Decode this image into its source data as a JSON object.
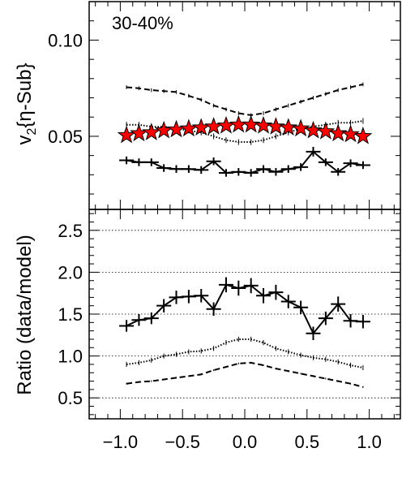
{
  "chart_data": [
    {
      "type": "line",
      "panel": "top",
      "label": "30-40%",
      "ylabel": "v₂{η-Sub}",
      "ylim": [
        0.012,
        0.12
      ],
      "yticks": [
        0.05,
        0.1
      ],
      "ytick_labels": [
        "0.05",
        "0.10"
      ],
      "xlim": [
        -1.25,
        1.25
      ],
      "x": [
        -0.95,
        -0.85,
        -0.75,
        -0.65,
        -0.55,
        -0.45,
        -0.35,
        -0.25,
        -0.15,
        -0.05,
        0.05,
        0.15,
        0.25,
        0.35,
        0.45,
        0.55,
        0.65,
        0.75,
        0.85,
        0.95
      ],
      "series": [
        {
          "style": "solid",
          "values": [
            0.0375,
            0.0365,
            0.0365,
            0.0335,
            0.033,
            0.033,
            0.0325,
            0.037,
            0.031,
            0.0315,
            0.031,
            0.033,
            0.0315,
            0.033,
            0.034,
            0.042,
            0.0365,
            0.0315,
            0.036,
            0.035
          ],
          "errors": [
            0.002,
            0.002,
            0.002,
            0.002,
            0.002,
            0.002,
            0.002,
            0.002,
            0.002,
            0.002,
            0.002,
            0.002,
            0.002,
            0.002,
            0.002,
            0.0025,
            0.002,
            0.002,
            0.002,
            0.002
          ]
        },
        {
          "style": "dashed",
          "values": [
            0.0755,
            0.075,
            0.074,
            0.0735,
            0.073,
            0.071,
            0.069,
            0.066,
            0.064,
            0.062,
            0.061,
            0.062,
            0.064,
            0.066,
            0.068,
            0.07,
            0.072,
            0.074,
            0.0755,
            0.077
          ],
          "errors": [
            0.001,
            0.001,
            0.001,
            0.001,
            0.001,
            0.001,
            0.001,
            0.001,
            0.001,
            0.001,
            0.001,
            0.001,
            0.001,
            0.001,
            0.001,
            0.001,
            0.001,
            0.001,
            0.001,
            0.001
          ]
        },
        {
          "style": "dotted",
          "values": [
            0.056,
            0.056,
            0.055,
            0.055,
            0.054,
            0.053,
            0.052,
            0.05,
            0.048,
            0.047,
            0.047,
            0.048,
            0.05,
            0.052,
            0.054,
            0.055,
            0.056,
            0.057,
            0.057,
            0.058
          ],
          "errors": [
            0.0015,
            0.0015,
            0.0015,
            0.0015,
            0.0015,
            0.0015,
            0.0015,
            0.0015,
            0.0015,
            0.0015,
            0.0015,
            0.0015,
            0.0015,
            0.0015,
            0.0015,
            0.0015,
            0.0015,
            0.0015,
            0.0015,
            0.0015
          ]
        },
        {
          "style": "star",
          "color": "#ff0000",
          "values": [
            0.0505,
            0.0515,
            0.052,
            0.053,
            0.0535,
            0.054,
            0.0545,
            0.055,
            0.0555,
            0.056,
            0.056,
            0.0555,
            0.055,
            0.0545,
            0.054,
            0.053,
            0.0525,
            0.0515,
            0.051,
            0.05
          ]
        }
      ]
    },
    {
      "type": "line",
      "panel": "bottom",
      "ylabel": "Ratio (data/model)",
      "ylim": [
        0.25,
        2.75
      ],
      "yticks": [
        0.5,
        1.0,
        1.5,
        2.0,
        2.5
      ],
      "ytick_labels": [
        "0.5",
        "1.0",
        "1.5",
        "2.0",
        "2.5"
      ],
      "gridlines": [
        0.5,
        1.0,
        1.5,
        2.0,
        2.5
      ],
      "xlim": [
        -1.25,
        1.25
      ],
      "xticks": [
        -1.0,
        -0.5,
        0.0,
        0.5,
        1.0
      ],
      "xtick_labels": [
        "−1.0",
        "−0.5",
        "0.0",
        "0.5",
        "1.0"
      ],
      "x": [
        -0.95,
        -0.85,
        -0.75,
        -0.65,
        -0.55,
        -0.45,
        -0.35,
        -0.25,
        -0.15,
        -0.05,
        0.05,
        0.15,
        0.25,
        0.35,
        0.45,
        0.55,
        0.65,
        0.75,
        0.85,
        0.95
      ],
      "series": [
        {
          "style": "solid",
          "values": [
            1.36,
            1.43,
            1.45,
            1.6,
            1.7,
            1.71,
            1.72,
            1.56,
            1.85,
            1.81,
            1.84,
            1.72,
            1.76,
            1.65,
            1.58,
            1.27,
            1.45,
            1.62,
            1.42,
            1.41
          ],
          "errors": [
            0.07,
            0.07,
            0.07,
            0.08,
            0.08,
            0.08,
            0.08,
            0.08,
            0.09,
            0.09,
            0.09,
            0.09,
            0.09,
            0.08,
            0.08,
            0.08,
            0.08,
            0.09,
            0.08,
            0.08
          ]
        },
        {
          "style": "dotted",
          "values": [
            0.9,
            0.92,
            0.95,
            1.0,
            1.02,
            1.05,
            1.06,
            1.09,
            1.16,
            1.2,
            1.2,
            1.16,
            1.09,
            1.05,
            1.01,
            0.98,
            0.96,
            0.93,
            0.89,
            0.86
          ],
          "errors": [
            0.03,
            0.03,
            0.03,
            0.03,
            0.03,
            0.03,
            0.03,
            0.03,
            0.03,
            0.03,
            0.03,
            0.03,
            0.03,
            0.03,
            0.03,
            0.03,
            0.03,
            0.03,
            0.03,
            0.03
          ]
        },
        {
          "style": "dashed",
          "values": [
            0.67,
            0.69,
            0.7,
            0.72,
            0.74,
            0.76,
            0.78,
            0.83,
            0.87,
            0.91,
            0.92,
            0.89,
            0.85,
            0.82,
            0.79,
            0.76,
            0.73,
            0.7,
            0.67,
            0.63
          ],
          "errors": [
            0.01,
            0.01,
            0.01,
            0.01,
            0.01,
            0.01,
            0.01,
            0.01,
            0.01,
            0.01,
            0.01,
            0.01,
            0.01,
            0.01,
            0.01,
            0.01,
            0.01,
            0.01,
            0.01,
            0.01
          ]
        }
      ]
    }
  ]
}
